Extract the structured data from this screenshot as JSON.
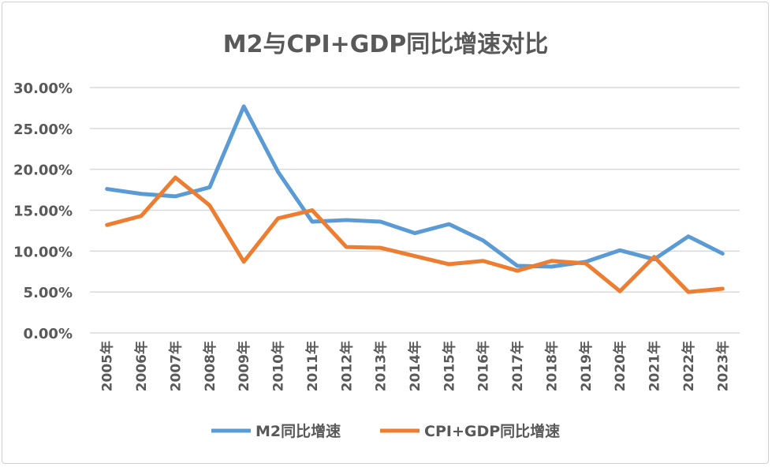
{
  "chart_data": {
    "type": "line",
    "title": "M2与CPI+GDP同比增速对比",
    "categories": [
      "2005年",
      "2006年",
      "2007年",
      "2008年",
      "2009年",
      "2010年",
      "2011年",
      "2012年",
      "2013年",
      "2014年",
      "2015年",
      "2016年",
      "2017年",
      "2018年",
      "2019年",
      "2020年",
      "2021年",
      "2022年",
      "2023年"
    ],
    "series": [
      {
        "name": "M2同比增速",
        "color": "#5b9bd5",
        "values": [
          17.6,
          17.0,
          16.7,
          17.8,
          27.7,
          19.7,
          13.6,
          13.8,
          13.6,
          12.2,
          13.3,
          11.3,
          8.2,
          8.1,
          8.7,
          10.1,
          9.0,
          11.8,
          9.7
        ]
      },
      {
        "name": "CPI+GDP同比增速",
        "color": "#ed7d31",
        "values": [
          13.2,
          14.3,
          19.0,
          15.6,
          8.7,
          14.0,
          15.0,
          10.5,
          10.4,
          9.4,
          8.4,
          8.8,
          7.6,
          8.8,
          8.5,
          5.1,
          9.3,
          5.0,
          5.4
        ]
      }
    ],
    "ylim": [
      0,
      30
    ],
    "yticks": [
      "0.00%",
      "5.00%",
      "10.00%",
      "15.00%",
      "20.00%",
      "25.00%",
      "30.00%"
    ],
    "grid": true,
    "legend": "bottom"
  }
}
